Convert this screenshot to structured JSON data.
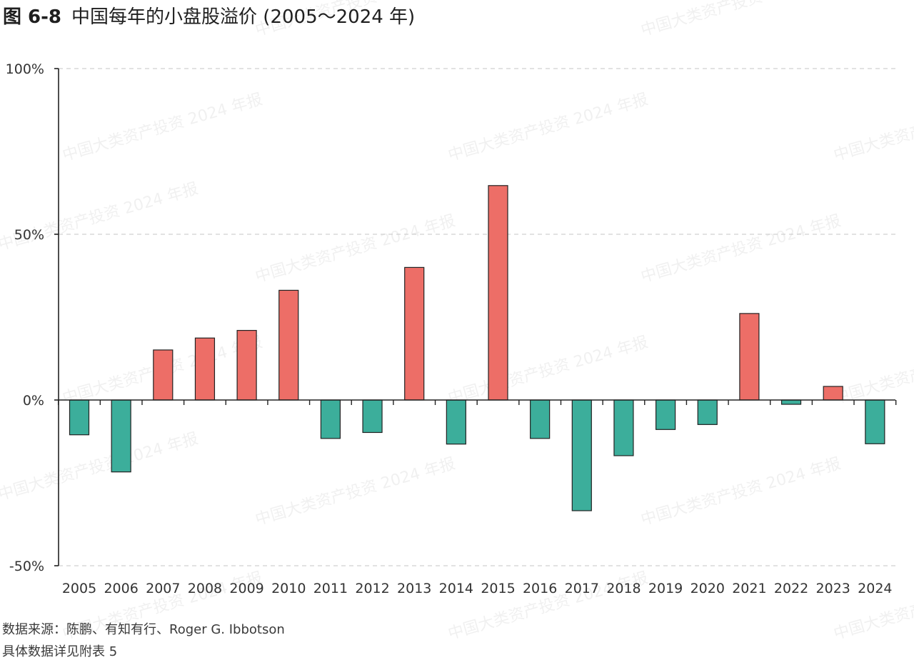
{
  "header": {
    "figure_number": "图 6-8",
    "title_text": "中国每年的小盘股溢价 (2005～2024 年)"
  },
  "footer": {
    "source": "数据来源：陈鹏、有知有行、Roger G. Ibbotson",
    "appendix": "具体数据详见附表 5"
  },
  "watermark": "中国大类资产投资 2024 年报",
  "colors": {
    "positive": "#ED6E67",
    "negative": "#3CAE9B",
    "axis": "#222222",
    "grid": "#D0D0D0",
    "bar_stroke": "#222222"
  },
  "chart_data": {
    "type": "bar",
    "title": "中国每年的小盘股溢价 (2005～2024 年)",
    "xlabel": "",
    "ylabel": "",
    "categories": [
      "2005",
      "2006",
      "2007",
      "2008",
      "2009",
      "2010",
      "2011",
      "2012",
      "2013",
      "2014",
      "2015",
      "2016",
      "2017",
      "2018",
      "2019",
      "2020",
      "2021",
      "2022",
      "2023",
      "2024"
    ],
    "values": [
      -10.5,
      -21.7,
      15.1,
      18.7,
      21.0,
      33.1,
      -11.6,
      -9.8,
      40.0,
      -13.3,
      64.7,
      -11.6,
      -33.4,
      -16.8,
      -8.9,
      -7.4,
      26.1,
      -1.3,
      4.1,
      -13.2
    ],
    "ylim": [
      -50,
      100
    ],
    "yticks": [
      -50,
      0,
      50,
      100
    ],
    "ytick_labels": [
      "-50%",
      "0%",
      "50%",
      "100%"
    ],
    "grid": "horizontal dashed",
    "legend": "none"
  }
}
